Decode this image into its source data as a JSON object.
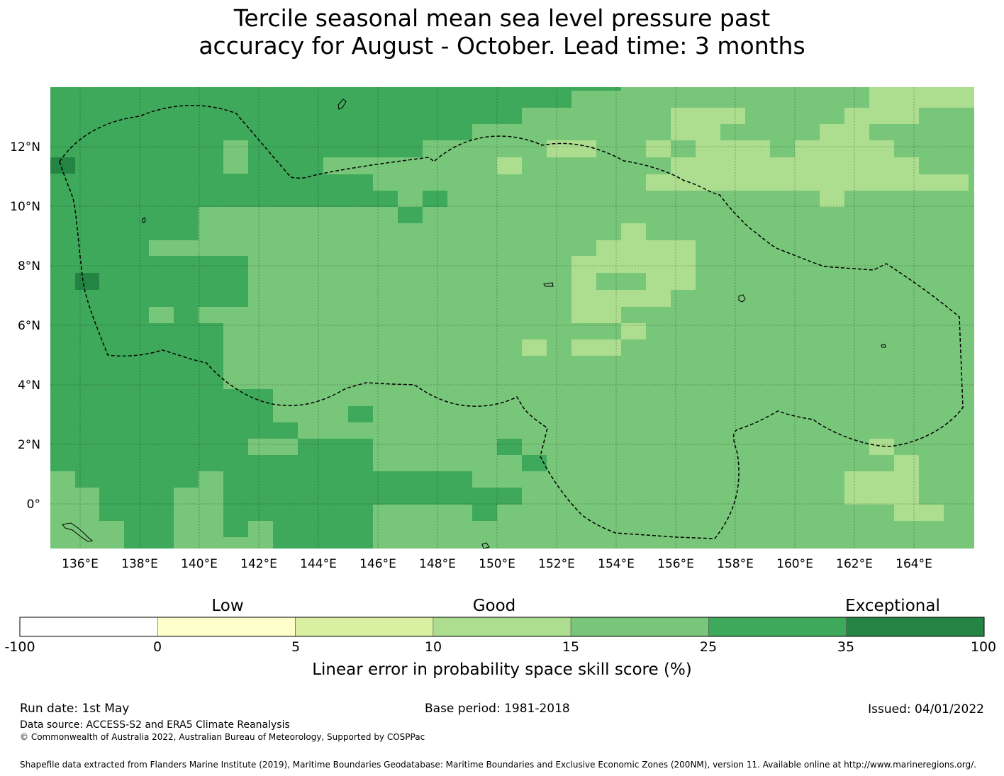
{
  "title": {
    "line1": "Tercile seasonal mean sea level pressure past",
    "line2": "accuracy for August - October. Lead time: 3 months"
  },
  "map": {
    "lon_labels": [
      "136°E",
      "138°E",
      "140°E",
      "142°E",
      "144°E",
      "146°E",
      "148°E",
      "150°E",
      "152°E",
      "154°E",
      "156°E",
      "158°E",
      "160°E",
      "162°E",
      "164°E"
    ],
    "lat_labels": [
      "12°N",
      "10°N",
      "8°N",
      "6°N",
      "4°N",
      "2°N",
      "0°"
    ],
    "grid_layers": [
      {
        "band": 35,
        "color": "#3ea95a"
      },
      {
        "band": 15,
        "color": "#78c679"
      },
      {
        "band": 10,
        "color": "#addd8e"
      }
    ],
    "eez_boundary": "dashed black line",
    "colors": {
      "c100": "#238443",
      "c35": "#3ea95a",
      "c25": "#78c679",
      "c15": "#addd8e",
      "c10": "#d9f0a3",
      "c5": "#ffffcc",
      "c0": "#ffffff"
    }
  },
  "colorbar": {
    "categories": [
      "Low",
      "Good",
      "Exceptional"
    ],
    "ticks": [
      "-100",
      "0",
      "5",
      "10",
      "15",
      "25",
      "35",
      "100"
    ],
    "colors": [
      "#ffffff",
      "#ffffcc",
      "#d9f0a3",
      "#addd8e",
      "#78c679",
      "#3ea95a",
      "#238443"
    ],
    "label": "Linear error in probability space skill score (%)"
  },
  "footer": {
    "run_date": "Run date: 1st May",
    "base_period": "Base period: 1981-2018",
    "issued": "Issued: 04/01/2022",
    "data_source": "Data source: ACCESS-S2 and ERA5 Climate Reanalysis",
    "copyright": "© Commonwealth of Australia 2022, Australian Bureau of Meteorology, Supported by COSPPac",
    "shapefile": "Shapefile data extracted from Flanders Marine Institute (2019), Maritime Boundaries Geodatabase: Maritime Boundaries and Exclusive Economic Zones (200NM), version 11. Available online at http://www.marineregions.org/."
  }
}
